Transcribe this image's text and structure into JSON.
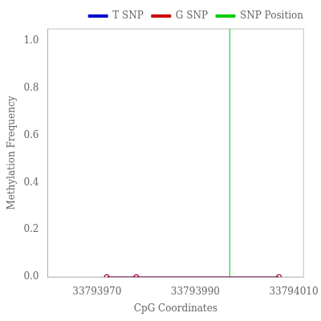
{
  "chart_data": {
    "type": "line",
    "xlabel": "CpG Coordinates",
    "ylabel": "Methylation Frequency",
    "x": [
      33793972,
      33793978,
      33794007
    ],
    "series": [
      {
        "name": "T SNP",
        "color": "#0000cd",
        "marker": "open_circle",
        "values": [
          0.0,
          0.0,
          0.0
        ]
      },
      {
        "name": "G SNP",
        "color": "#cd0000",
        "marker": "open_circle",
        "values": [
          0.0,
          0.0,
          0.0
        ]
      },
      {
        "name": "SNP Position",
        "color": "#00cd00",
        "type": "vline",
        "x": 33793997
      }
    ],
    "xlim": [
      33793960,
      33794012
    ],
    "xticks": [
      33793970,
      33793990,
      33794010
    ],
    "ylim": [
      0.0,
      1.05
    ],
    "yticks": [
      {
        "value": 0.0,
        "label": "0.0"
      },
      0.2,
      0.4,
      0.6,
      0.8,
      {
        "value": 1.0,
        "label": "1.0"
      }
    ],
    "grid": false,
    "legend": "upper right"
  }
}
